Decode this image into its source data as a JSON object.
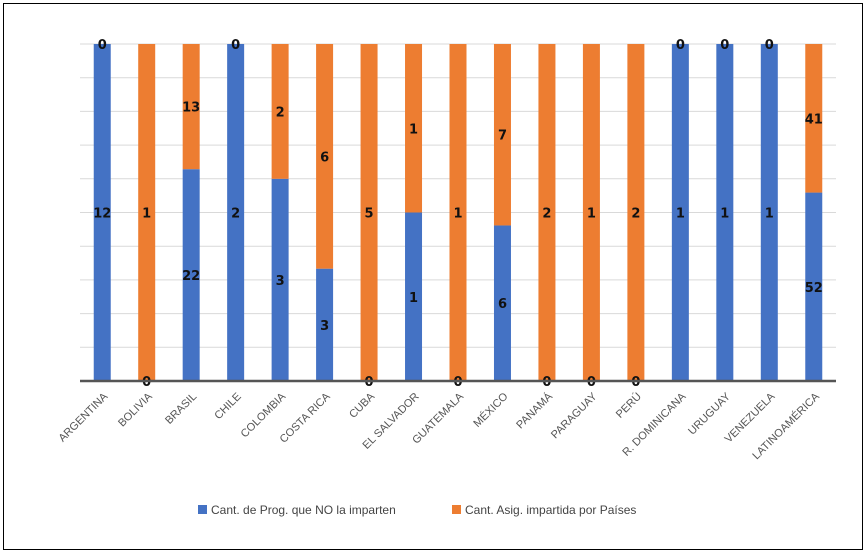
{
  "chart_data": {
    "type": "bar",
    "stacked": "percent",
    "categories": [
      "ARGENTINA",
      "BOLIVIA",
      "BRASIL",
      "CHILE",
      "COLOMBIA",
      "COSTA RICA",
      "CUBA",
      "EL SALVADOR",
      "GUATEMALA",
      "MÉXICO",
      "PANAMÁ",
      "PARAGUAY",
      "PERÚ",
      "R. DOMINICANA",
      "URUGUAY",
      "VENEZUELA",
      "LATINOAMÉRICA"
    ],
    "series": [
      {
        "name": "Cant. de Prog. que NO la imparten",
        "color": "#4472c4",
        "values": [
          12,
          0,
          22,
          2,
          3,
          3,
          0,
          1,
          0,
          6,
          0,
          0,
          0,
          1,
          1,
          1,
          52
        ]
      },
      {
        "name": "Cant. Asig. impartida por Países",
        "color": "#ed7d31",
        "values": [
          0,
          1,
          13,
          0,
          2,
          6,
          5,
          1,
          1,
          7,
          2,
          1,
          2,
          0,
          0,
          0,
          41
        ]
      }
    ],
    "grid": true,
    "legend": "bottom"
  }
}
